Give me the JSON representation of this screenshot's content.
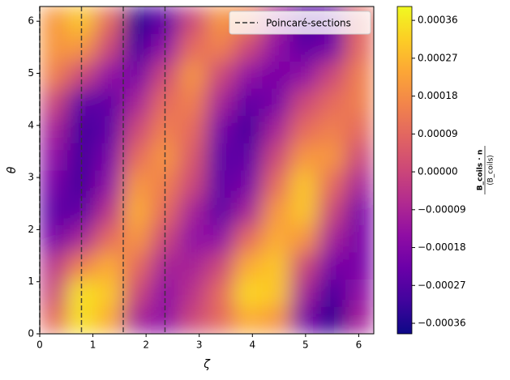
{
  "chart_data": {
    "type": "contour",
    "colormap": "plasma",
    "xlabel": "ζ",
    "ylabel": "θ",
    "colorbar_label": {
      "numerator": "B_coils · n",
      "denominator": "⟨B_coils⟩"
    },
    "xlim": [
      0,
      6.283
    ],
    "ylim": [
      0,
      6.283
    ],
    "xticks": [
      0,
      1,
      2,
      3,
      4,
      5,
      6
    ],
    "yticks": [
      0,
      1,
      2,
      3,
      4,
      5,
      6
    ],
    "zlim": [
      -0.000385,
      0.000393
    ],
    "zticks": [
      {
        "value": -0.00036,
        "label": "−0.00036"
      },
      {
        "value": -0.00027,
        "label": "−0.00027"
      },
      {
        "value": -0.00018,
        "label": "−0.00018"
      },
      {
        "value": -9e-05,
        "label": "−0.00009"
      },
      {
        "value": 0,
        "label": "0.00000"
      },
      9e-05,
      0.00018,
      0.00027,
      0.00036
    ],
    "z": [
      [
        0.0001,
        0.00035,
        0.00025,
        -0.0001,
        -0.00015,
        0,
        0.0001,
        0.00025,
        0.0002,
        -0.0002,
        -0.00035,
        -0.0001
      ],
      [
        0,
        0.00035,
        0.0003,
        0,
        -0.00015,
        -5e-05,
        0.0001,
        0.00033,
        0.0003,
        -0.0001,
        -0.0003,
        -0.00015
      ],
      [
        -5e-05,
        0.00015,
        0.00025,
        0.0001,
        -0.0001,
        -0.0001,
        0,
        0.00025,
        0.0003,
        0,
        -0.0002,
        -0.0002
      ],
      [
        -0.0002,
        -0.0001,
        0.0001,
        0.0002,
        0,
        -0.00015,
        -0.00015,
        0.0001,
        0.00025,
        0.0002,
        -0.0001,
        -0.0002
      ],
      [
        -0.00025,
        -0.00025,
        -5e-05,
        0.00025,
        0.0001,
        -0.0001,
        -0.00025,
        -0.0001,
        0.0002,
        0.0003,
        0,
        -0.0002
      ],
      [
        -0.0002,
        -0.0003,
        -0.00015,
        0.0002,
        0.00015,
        0,
        -0.00025,
        -0.0002,
        0.0001,
        0.0003,
        0.0001,
        -0.0001
      ],
      [
        -0.00015,
        -0.0003,
        -0.0002,
        0.0001,
        0.0002,
        5e-05,
        -0.00025,
        -0.00025,
        0,
        0.0002,
        0.0002,
        0
      ],
      [
        -0.0001,
        -0.0003,
        -0.00025,
        0,
        0.00015,
        0.0001,
        -0.0002,
        -0.0003,
        -0.0001,
        0.0001,
        0.00015,
        0.0001
      ],
      [
        0,
        -0.00025,
        -0.00025,
        -0.0001,
        0.0001,
        0.00015,
        -0.0001,
        -0.00025,
        -0.0002,
        0,
        0.0001,
        0.00015
      ],
      [
        0.00015,
        0,
        -0.00015,
        -0.0002,
        0,
        0.0002,
        0,
        -0.00015,
        -0.0002,
        -0.00015,
        0,
        0.00015
      ],
      [
        0.0002,
        0.0002,
        0,
        -0.0003,
        -0.00015,
        0.0001,
        0.00015,
        0,
        -0.00015,
        -0.00025,
        -0.0002,
        0.0001
      ],
      [
        0.0002,
        0.0003,
        0.0001,
        -0.00035,
        -0.00025,
        0,
        0.0002,
        0.00015,
        -0.0001,
        -0.0003,
        -0.00025,
        0.0001
      ]
    ],
    "vlines": [
      0,
      0.785,
      1.571,
      2.356
    ],
    "vline_color": "#333333",
    "legend_label": "Poincaré-sections",
    "legend": "upper right"
  }
}
